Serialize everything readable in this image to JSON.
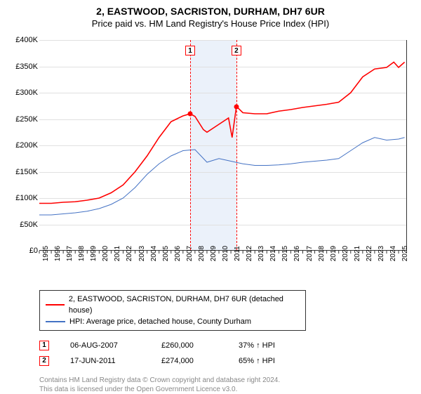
{
  "title": "2, EASTWOOD, SACRISTON, DURHAM, DH7 6UR",
  "subtitle": "Price paid vs. HM Land Registry's House Price Index (HPI)",
  "chart": {
    "type": "line",
    "x_min": 1995,
    "x_max": 2025.7,
    "y_min": 0,
    "y_max": 400000,
    "ytick_step": 50000,
    "ytick_labels": [
      "£0",
      "£50K",
      "£100K",
      "£150K",
      "£200K",
      "£250K",
      "£300K",
      "£350K",
      "£400K"
    ],
    "xticks": [
      1995,
      1996,
      1997,
      1998,
      1999,
      2000,
      2001,
      2002,
      2003,
      2004,
      2005,
      2006,
      2007,
      2008,
      2009,
      2010,
      2011,
      2012,
      2013,
      2014,
      2015,
      2016,
      2017,
      2018,
      2019,
      2020,
      2021,
      2022,
      2023,
      2024,
      2025
    ],
    "grid_color": "#e0e0e0",
    "background_color": "#ffffff",
    "shaded_region": {
      "x_start": 2007.6,
      "x_end": 2011.46,
      "color": "#ebf1fa"
    },
    "marker_dash_color": "#ff0000",
    "markers": [
      {
        "n": "1",
        "x": 2007.6,
        "y_box": 380000
      },
      {
        "n": "2",
        "x": 2011.46,
        "y_box": 380000
      }
    ],
    "sale_points": [
      {
        "x": 2007.6,
        "y": 260000
      },
      {
        "x": 2011.46,
        "y": 274000
      }
    ],
    "series": [
      {
        "name": "property",
        "color": "#ff0000",
        "width": 1.6,
        "label": "2, EASTWOOD, SACRISTON, DURHAM, DH7 6UR (detached house)",
        "data": [
          [
            1995,
            90000
          ],
          [
            1996,
            90000
          ],
          [
            1997,
            92000
          ],
          [
            1998,
            93000
          ],
          [
            1999,
            96000
          ],
          [
            2000,
            100000
          ],
          [
            2001,
            110000
          ],
          [
            2002,
            125000
          ],
          [
            2003,
            150000
          ],
          [
            2004,
            180000
          ],
          [
            2005,
            215000
          ],
          [
            2006,
            245000
          ],
          [
            2007,
            256000
          ],
          [
            2007.6,
            260000
          ],
          [
            2008,
            255000
          ],
          [
            2008.7,
            230000
          ],
          [
            2009,
            225000
          ],
          [
            2010,
            240000
          ],
          [
            2010.8,
            252000
          ],
          [
            2011.1,
            215000
          ],
          [
            2011.46,
            274000
          ],
          [
            2012,
            262000
          ],
          [
            2013,
            260000
          ],
          [
            2014,
            260000
          ],
          [
            2015,
            265000
          ],
          [
            2016,
            268000
          ],
          [
            2017,
            272000
          ],
          [
            2018,
            275000
          ],
          [
            2019,
            278000
          ],
          [
            2020,
            282000
          ],
          [
            2021,
            300000
          ],
          [
            2022,
            330000
          ],
          [
            2023,
            345000
          ],
          [
            2024,
            348000
          ],
          [
            2024.6,
            358000
          ],
          [
            2025,
            348000
          ],
          [
            2025.5,
            358000
          ]
        ]
      },
      {
        "name": "hpi",
        "color": "#4472c4",
        "width": 1,
        "label": "HPI: Average price, detached house, County Durham",
        "data": [
          [
            1995,
            68000
          ],
          [
            1996,
            68000
          ],
          [
            1997,
            70000
          ],
          [
            1998,
            72000
          ],
          [
            1999,
            75000
          ],
          [
            2000,
            80000
          ],
          [
            2001,
            88000
          ],
          [
            2002,
            100000
          ],
          [
            2003,
            120000
          ],
          [
            2004,
            145000
          ],
          [
            2005,
            165000
          ],
          [
            2006,
            180000
          ],
          [
            2007,
            190000
          ],
          [
            2008,
            192000
          ],
          [
            2009,
            168000
          ],
          [
            2010,
            175000
          ],
          [
            2011,
            170000
          ],
          [
            2012,
            165000
          ],
          [
            2013,
            162000
          ],
          [
            2014,
            162000
          ],
          [
            2015,
            163000
          ],
          [
            2016,
            165000
          ],
          [
            2017,
            168000
          ],
          [
            2018,
            170000
          ],
          [
            2019,
            172000
          ],
          [
            2020,
            175000
          ],
          [
            2021,
            190000
          ],
          [
            2022,
            205000
          ],
          [
            2023,
            215000
          ],
          [
            2024,
            210000
          ],
          [
            2025,
            212000
          ],
          [
            2025.5,
            215000
          ]
        ]
      }
    ]
  },
  "legend": {
    "rows": [
      {
        "color": "#ff0000",
        "label": "2, EASTWOOD, SACRISTON, DURHAM, DH7 6UR (detached house)"
      },
      {
        "color": "#4472c4",
        "label": "HPI: Average price, detached house, County Durham"
      }
    ]
  },
  "sales": [
    {
      "n": "1",
      "date": "06-AUG-2007",
      "price": "£260,000",
      "pct": "37% ↑ HPI"
    },
    {
      "n": "2",
      "date": "17-JUN-2011",
      "price": "£274,000",
      "pct": "65% ↑ HPI"
    }
  ],
  "footer_line1": "Contains HM Land Registry data © Crown copyright and database right 2024.",
  "footer_line2": "This data is licensed under the Open Government Licence v3.0."
}
